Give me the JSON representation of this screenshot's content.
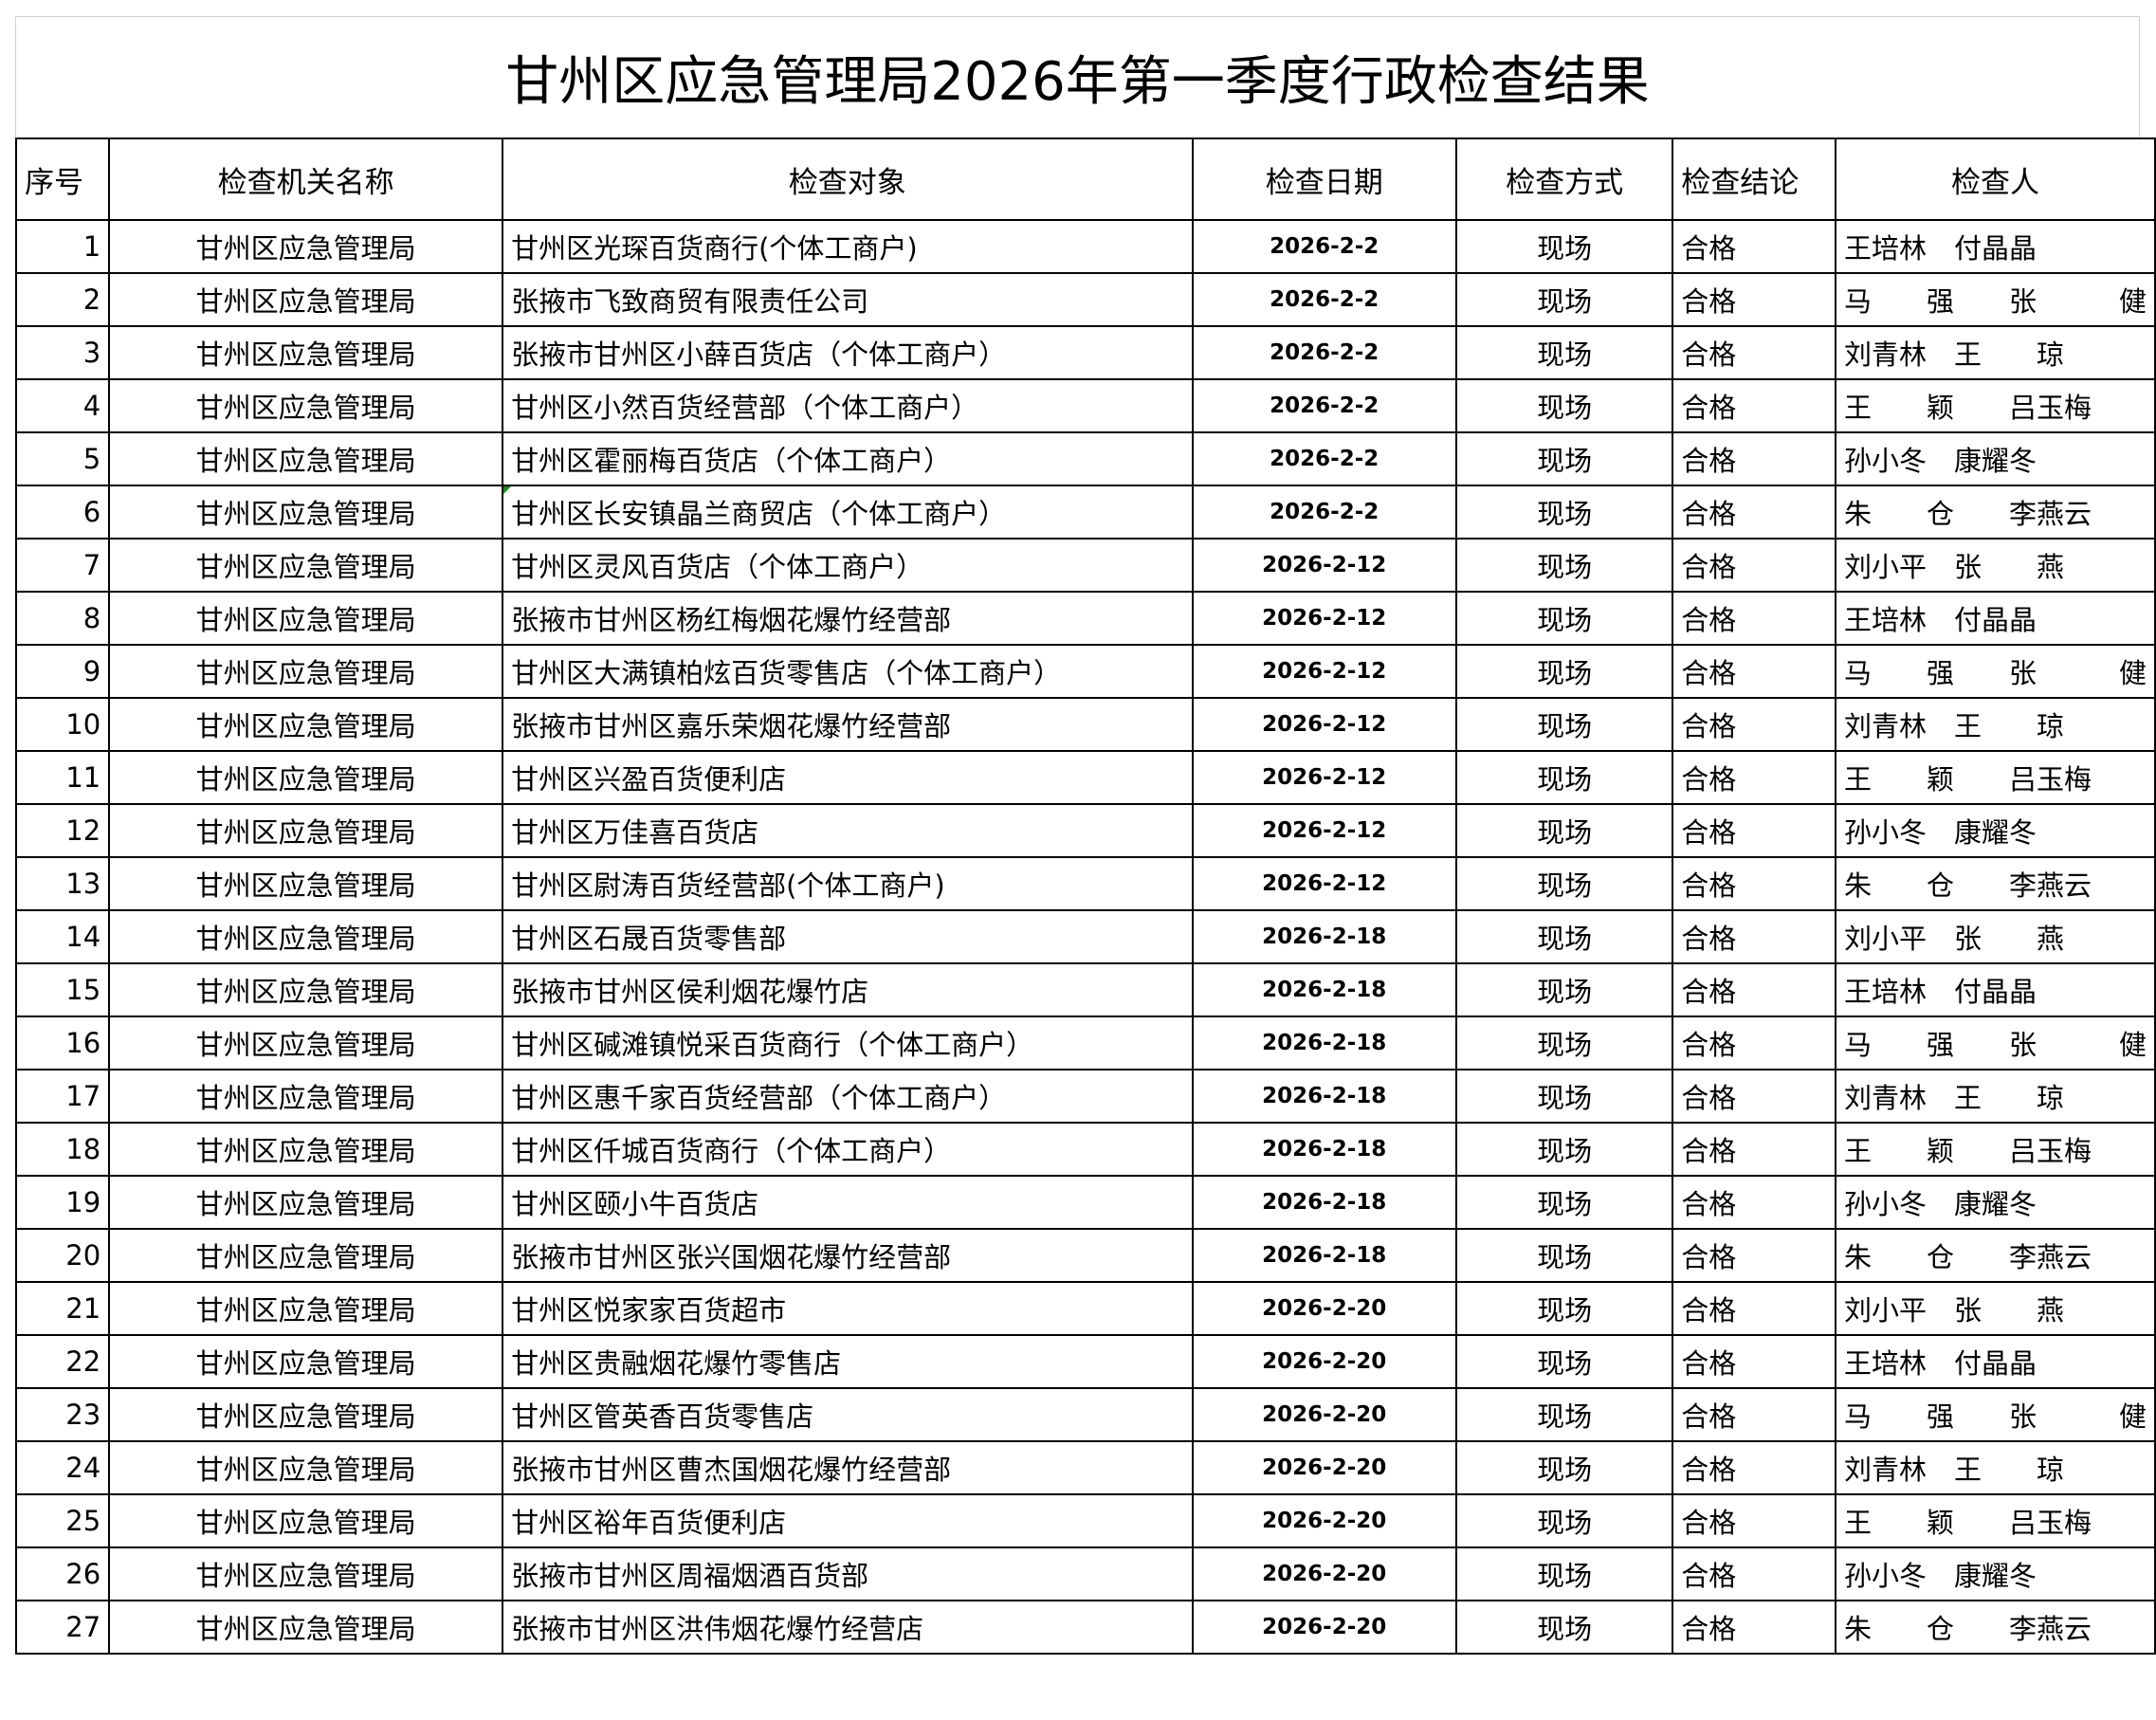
{
  "title": "甘州区应急管理局2026年第一季度行政检查结果",
  "headers": [
    "序号",
    "检查机关名称",
    "检查对象",
    "检查日期",
    "检查方式",
    "检查结论",
    "检查人"
  ],
  "rows": [
    [
      "1",
      "甘州区应急管理局",
      "甘州区光琛百货商行(个体工商户)",
      "2026-2-2",
      "现场",
      "合格",
      "王培林　付晶晶"
    ],
    [
      "2",
      "甘州区应急管理局",
      "张掖市飞致商贸有限责任公司",
      "2026-2-2",
      "现场",
      "合格",
      "马　　强　　张　　　健"
    ],
    [
      "3",
      "甘州区应急管理局",
      "张掖市甘州区小薛百货店（个体工商户）",
      "2026-2-2",
      "现场",
      "合格",
      "刘青林　王　　琼"
    ],
    [
      "4",
      "甘州区应急管理局",
      "甘州区小然百货经营部（个体工商户）",
      "2026-2-2",
      "现场",
      "合格",
      "王　　颖　　吕玉梅"
    ],
    [
      "5",
      "甘州区应急管理局",
      "甘州区霍丽梅百货店（个体工商户）",
      "2026-2-2",
      "现场",
      "合格",
      "孙小冬　康耀冬"
    ],
    [
      "6",
      "甘州区应急管理局",
      "甘州区长安镇晶兰商贸店（个体工商户）",
      "2026-2-2",
      "现场",
      "合格",
      "朱　　仓　　李燕云"
    ],
    [
      "7",
      "甘州区应急管理局",
      "甘州区灵风百货店（个体工商户）",
      "2026-2-12",
      "现场",
      "合格",
      "刘小平　张　　燕"
    ],
    [
      "8",
      "甘州区应急管理局",
      "张掖市甘州区杨红梅烟花爆竹经营部",
      "2026-2-12",
      "现场",
      "合格",
      "王培林　付晶晶"
    ],
    [
      "9",
      "甘州区应急管理局",
      "甘州区大满镇柏炫百货零售店（个体工商户）",
      "2026-2-12",
      "现场",
      "合格",
      "马　　强　　张　　　健"
    ],
    [
      "10",
      "甘州区应急管理局",
      "张掖市甘州区嘉乐荣烟花爆竹经营部",
      "2026-2-12",
      "现场",
      "合格",
      "刘青林　王　　琼"
    ],
    [
      "11",
      "甘州区应急管理局",
      "甘州区兴盈百货便利店",
      "2026-2-12",
      "现场",
      "合格",
      "王　　颖　　吕玉梅"
    ],
    [
      "12",
      "甘州区应急管理局",
      "甘州区万佳喜百货店",
      "2026-2-12",
      "现场",
      "合格",
      "孙小冬　康耀冬"
    ],
    [
      "13",
      "甘州区应急管理局",
      "甘州区尉涛百货经营部(个体工商户)",
      "2026-2-12",
      "现场",
      "合格",
      "朱　　仓　　李燕云"
    ],
    [
      "14",
      "甘州区应急管理局",
      "甘州区石晟百货零售部",
      "2026-2-18",
      "现场",
      "合格",
      "刘小平　张　　燕"
    ],
    [
      "15",
      "甘州区应急管理局",
      "张掖市甘州区侯利烟花爆竹店",
      "2026-2-18",
      "现场",
      "合格",
      "王培林　付晶晶"
    ],
    [
      "16",
      "甘州区应急管理局",
      "甘州区碱滩镇悦采百货商行（个体工商户）",
      "2026-2-18",
      "现场",
      "合格",
      "马　　强　　张　　　健"
    ],
    [
      "17",
      "甘州区应急管理局",
      "甘州区惠千家百货经营部（个体工商户）",
      "2026-2-18",
      "现场",
      "合格",
      "刘青林　王　　琼"
    ],
    [
      "18",
      "甘州区应急管理局",
      "甘州区仟城百货商行（个体工商户）",
      "2026-2-18",
      "现场",
      "合格",
      "王　　颖　　吕玉梅"
    ],
    [
      "19",
      "甘州区应急管理局",
      "甘州区颐小牛百货店",
      "2026-2-18",
      "现场",
      "合格",
      "孙小冬　康耀冬"
    ],
    [
      "20",
      "甘州区应急管理局",
      "张掖市甘州区张兴国烟花爆竹经营部",
      "2026-2-18",
      "现场",
      "合格",
      "朱　　仓　　李燕云"
    ],
    [
      "21",
      "甘州区应急管理局",
      "甘州区悦家家百货超市",
      "2026-2-20",
      "现场",
      "合格",
      "刘小平　张　　燕"
    ],
    [
      "22",
      "甘州区应急管理局",
      "甘州区贵融烟花爆竹零售店",
      "2026-2-20",
      "现场",
      "合格",
      "王培林　付晶晶"
    ],
    [
      "23",
      "甘州区应急管理局",
      "甘州区管英香百货零售店",
      "2026-2-20",
      "现场",
      "合格",
      "马　　强　　张　　　健"
    ],
    [
      "24",
      "甘州区应急管理局",
      "张掖市甘州区曹杰国烟花爆竹经营部",
      "2026-2-20",
      "现场",
      "合格",
      "刘青林　王　　琼"
    ],
    [
      "25",
      "甘州区应急管理局",
      "甘州区裕年百货便利店",
      "2026-2-20",
      "现场",
      "合格",
      "王　　颖　　吕玉梅"
    ],
    [
      "26",
      "甘州区应急管理局",
      "张掖市甘州区周福烟酒百货部",
      "2026-2-20",
      "现场",
      "合格",
      "孙小冬　康耀冬"
    ],
    [
      "27",
      "甘州区应急管理局",
      "张掖市甘州区洪伟烟花爆竹经营店",
      "2026-2-20",
      "现场",
      "合格",
      "朱　　仓　　李燕云"
    ]
  ]
}
